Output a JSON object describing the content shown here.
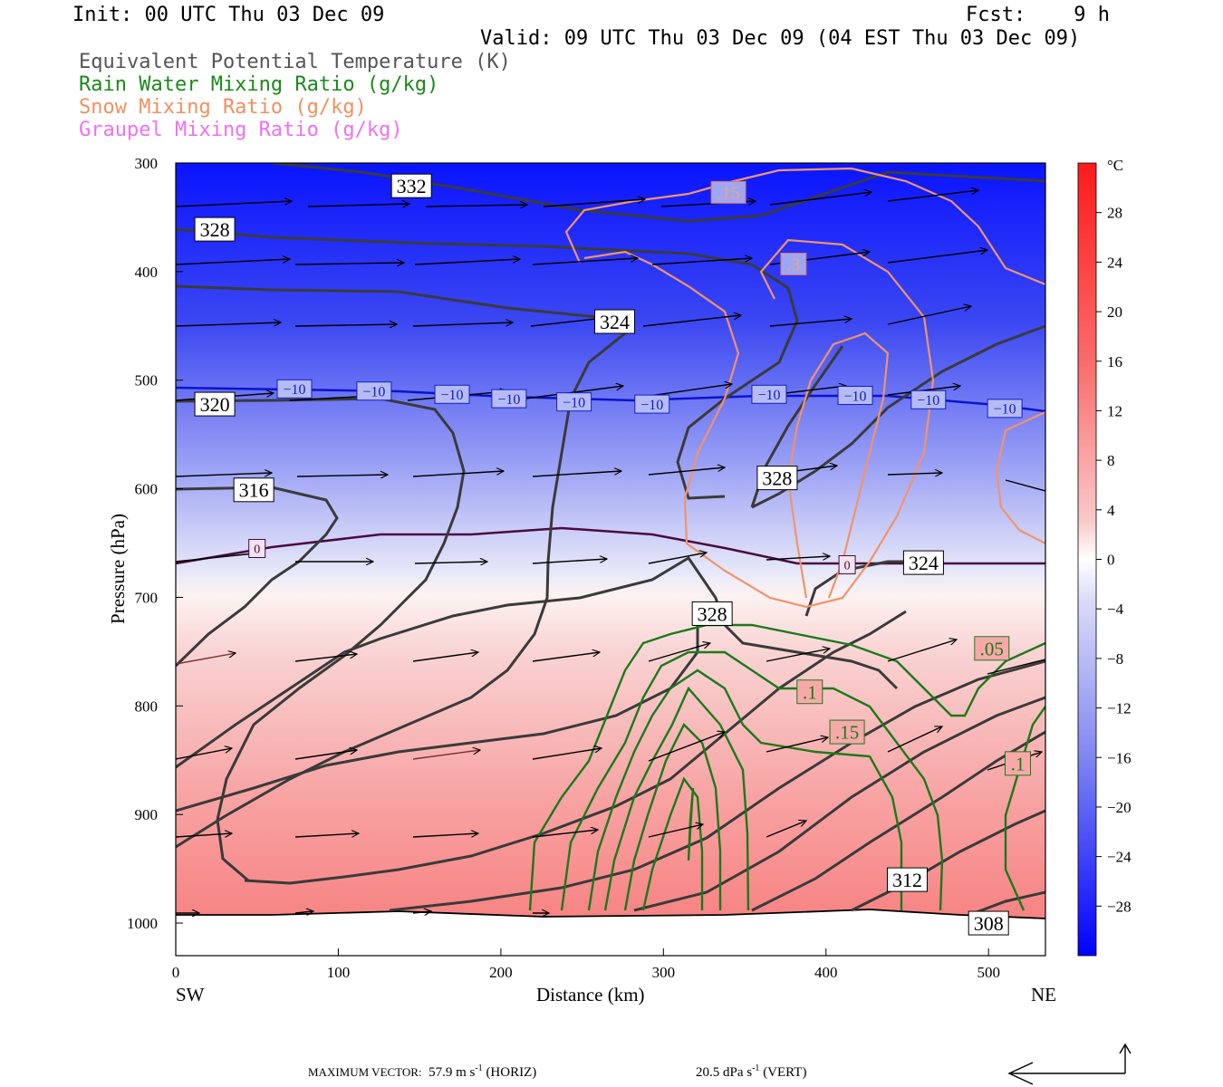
{
  "header": {
    "init": "Init: 00 UTC Thu 03 Dec 09",
    "fcst": "Fcst:    9 h",
    "valid": "Valid: 09 UTC Thu 03 Dec 09 (04 EST Thu 03 Dec 09)",
    "fields": [
      {
        "text": "Equivalent Potential Temperature (K)",
        "color": "#555555"
      },
      {
        "text": "Rain Water Mixing Ratio (g/kg)",
        "color": "#1a8a1a"
      },
      {
        "text": "Snow Mixing Ratio (g/kg)",
        "color": "#f09060"
      },
      {
        "text": "Graupel Mixing Ratio (g/kg)",
        "color": "#f070f0"
      }
    ]
  },
  "chart_data": {
    "type": "contour cross-section",
    "xlabel": "Distance (km)",
    "ylabel": "Pressure (hPa)",
    "x_ticks": [
      0,
      100,
      200,
      300,
      400,
      500
    ],
    "xlim": [
      0,
      535
    ],
    "y_ticks": [
      300,
      400,
      500,
      600,
      700,
      800,
      900,
      1000
    ],
    "ylim": [
      300,
      1030
    ],
    "left_end": "SW",
    "right_end": "NE",
    "colorbar": {
      "unit": "°C",
      "ticks": [
        28,
        24,
        20,
        16,
        12,
        8,
        4,
        0,
        -4,
        -8,
        -12,
        -16,
        -20,
        -24,
        -28
      ],
      "range": [
        -32,
        32
      ]
    },
    "temperature_zero_isotherm_hPa": 640,
    "minus10_isotherm_hPa": 510,
    "theta_e_labels": [
      {
        "text": "332",
        "x": 145,
        "p": 321
      },
      {
        "text": "328",
        "x": 24,
        "p": 361
      },
      {
        "text": "324",
        "x": 270,
        "p": 446
      },
      {
        "text": "320",
        "x": 24,
        "p": 522
      },
      {
        "text": "316",
        "x": 48,
        "p": 601
      },
      {
        "text": "328",
        "x": 370,
        "p": 590
      },
      {
        "text": "324",
        "x": 460,
        "p": 668
      },
      {
        "text": "328",
        "x": 330,
        "p": 715
      },
      {
        "text": "312",
        "x": 450,
        "p": 960
      },
      {
        "text": "308",
        "x": 500,
        "p": 1000
      }
    ],
    "isotherm_labels": [
      {
        "text": "-10",
        "x": 73,
        "p": 508
      },
      {
        "text": "-10",
        "x": 122,
        "p": 510
      },
      {
        "text": "-10",
        "x": 170,
        "p": 513
      },
      {
        "text": "-10",
        "x": 205,
        "p": 517
      },
      {
        "text": "-10",
        "x": 245,
        "p": 520
      },
      {
        "text": "-10",
        "x": 293,
        "p": 522
      },
      {
        "text": "-10",
        "x": 365,
        "p": 513
      },
      {
        "text": "-10",
        "x": 418,
        "p": 514
      },
      {
        "text": "-10",
        "x": 463,
        "p": 518
      },
      {
        "text": "-10",
        "x": 510,
        "p": 526
      },
      {
        "text": "0",
        "x": 50,
        "p": 655
      },
      {
        "text": "0",
        "x": 413,
        "p": 670
      }
    ],
    "snow_labels": [
      {
        "text": ".15",
        "x": 340,
        "p": 327
      },
      {
        "text": ".3",
        "x": 380,
        "p": 393
      }
    ],
    "rain_labels": [
      {
        "text": ".1",
        "x": 390,
        "p": 787
      },
      {
        "text": ".15",
        "x": 413,
        "p": 824
      },
      {
        "text": ".05",
        "x": 502,
        "p": 747
      },
      {
        "text": ".1",
        "x": 518,
        "p": 853
      }
    ]
  },
  "footer": {
    "max_label": "MAXIMUM VECTOR:",
    "horiz": "57.9 m s",
    "horiz_suffix": "(HORIZ)",
    "vert": "20.5 dPa s",
    "vert_suffix": "(VERT)",
    "exponent": "-1"
  }
}
